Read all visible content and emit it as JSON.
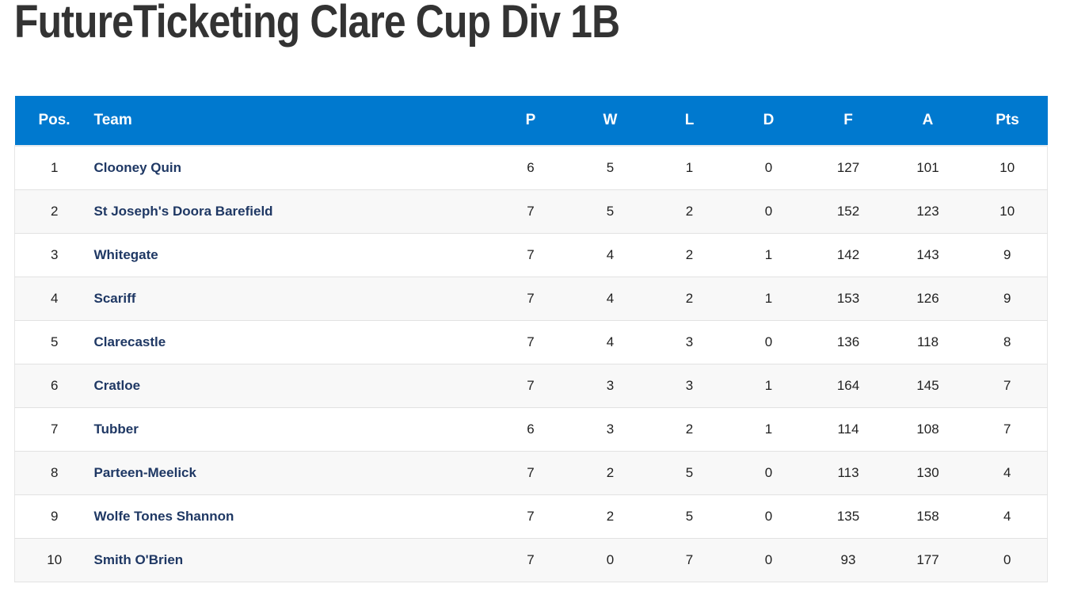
{
  "page": {
    "title": "FutureTicketing Clare Cup Div 1B"
  },
  "colors": {
    "header_bg": "#0079cf",
    "header_text": "#ffffff",
    "team_text": "#1f3864",
    "row_alt": "#f8f8f8"
  },
  "table": {
    "headers": {
      "pos": "Pos.",
      "team": "Team",
      "p": "P",
      "w": "W",
      "l": "L",
      "d": "D",
      "f": "F",
      "a": "A",
      "pts": "Pts"
    },
    "rows": [
      {
        "pos": "1",
        "team": "Clooney Quin",
        "p": "6",
        "w": "5",
        "l": "1",
        "d": "0",
        "f": "127",
        "a": "101",
        "pts": "10"
      },
      {
        "pos": "2",
        "team": "St Joseph's Doora Barefield",
        "p": "7",
        "w": "5",
        "l": "2",
        "d": "0",
        "f": "152",
        "a": "123",
        "pts": "10"
      },
      {
        "pos": "3",
        "team": "Whitegate",
        "p": "7",
        "w": "4",
        "l": "2",
        "d": "1",
        "f": "142",
        "a": "143",
        "pts": "9"
      },
      {
        "pos": "4",
        "team": "Scariff",
        "p": "7",
        "w": "4",
        "l": "2",
        "d": "1",
        "f": "153",
        "a": "126",
        "pts": "9"
      },
      {
        "pos": "5",
        "team": "Clarecastle",
        "p": "7",
        "w": "4",
        "l": "3",
        "d": "0",
        "f": "136",
        "a": "118",
        "pts": "8"
      },
      {
        "pos": "6",
        "team": "Cratloe",
        "p": "7",
        "w": "3",
        "l": "3",
        "d": "1",
        "f": "164",
        "a": "145",
        "pts": "7"
      },
      {
        "pos": "7",
        "team": "Tubber",
        "p": "6",
        "w": "3",
        "l": "2",
        "d": "1",
        "f": "114",
        "a": "108",
        "pts": "7"
      },
      {
        "pos": "8",
        "team": "Parteen-Meelick",
        "p": "7",
        "w": "2",
        "l": "5",
        "d": "0",
        "f": "113",
        "a": "130",
        "pts": "4"
      },
      {
        "pos": "9",
        "team": "Wolfe Tones Shannon",
        "p": "7",
        "w": "2",
        "l": "5",
        "d": "0",
        "f": "135",
        "a": "158",
        "pts": "4"
      },
      {
        "pos": "10",
        "team": "Smith O'Brien",
        "p": "7",
        "w": "0",
        "l": "7",
        "d": "0",
        "f": "93",
        "a": "177",
        "pts": "0"
      }
    ]
  }
}
